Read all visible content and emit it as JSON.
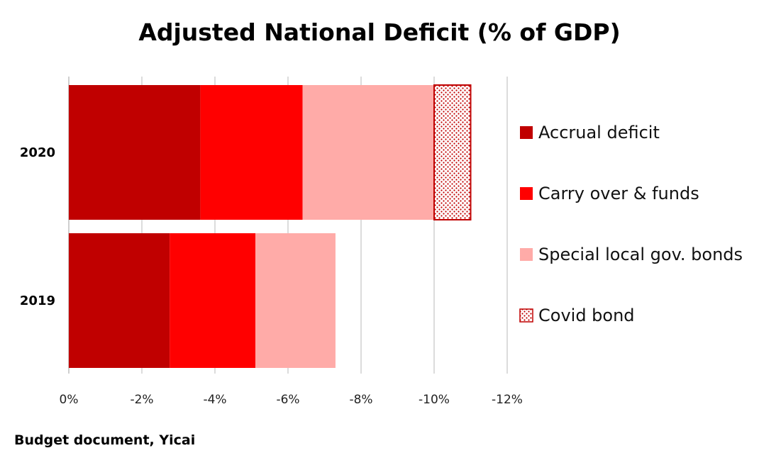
{
  "chart_data": {
    "type": "bar",
    "orientation": "horizontal",
    "stacked": true,
    "title": "Adjusted National Deficit (% of GDP)",
    "source": "Budget document, Yicai",
    "categories": [
      "2020",
      "2019"
    ],
    "series": [
      {
        "name": "Accrual deficit",
        "values": [
          -3.6,
          -2.76
        ],
        "color": "#C00000",
        "pattern": "solid"
      },
      {
        "name": "Carry over & funds",
        "values": [
          -2.8,
          -2.35
        ],
        "color": "#FF0000",
        "pattern": "solid"
      },
      {
        "name": "Special local gov. bonds",
        "values": [
          -3.6,
          -2.19
        ],
        "color": "#FFABA8",
        "pattern": "solid"
      },
      {
        "name": "Covid bond",
        "values": [
          -1.0,
          0
        ],
        "color": "#C00000",
        "pattern": "dotted"
      }
    ],
    "x_ticks": [
      "0%",
      "-2%",
      "-4%",
      "-6%",
      "-8%",
      "-10%",
      "-12%"
    ],
    "x_tick_values": [
      0,
      -2,
      -4,
      -6,
      -8,
      -10,
      -12
    ],
    "xlim": [
      0,
      -12
    ],
    "grid": true,
    "legend_position": "right"
  }
}
